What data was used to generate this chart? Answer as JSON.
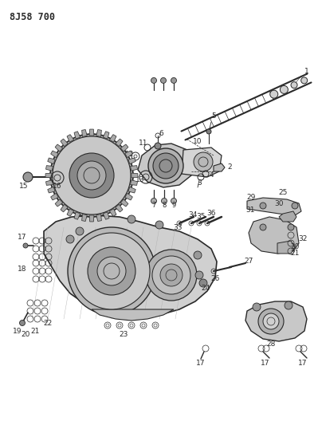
{
  "title": "8J58 700",
  "bg_color": "#ffffff",
  "lc": "#2a2a2a",
  "fig_width": 3.99,
  "fig_height": 5.33,
  "dpi": 100,
  "xlim": [
    0,
    399
  ],
  "ylim": [
    0,
    533
  ]
}
